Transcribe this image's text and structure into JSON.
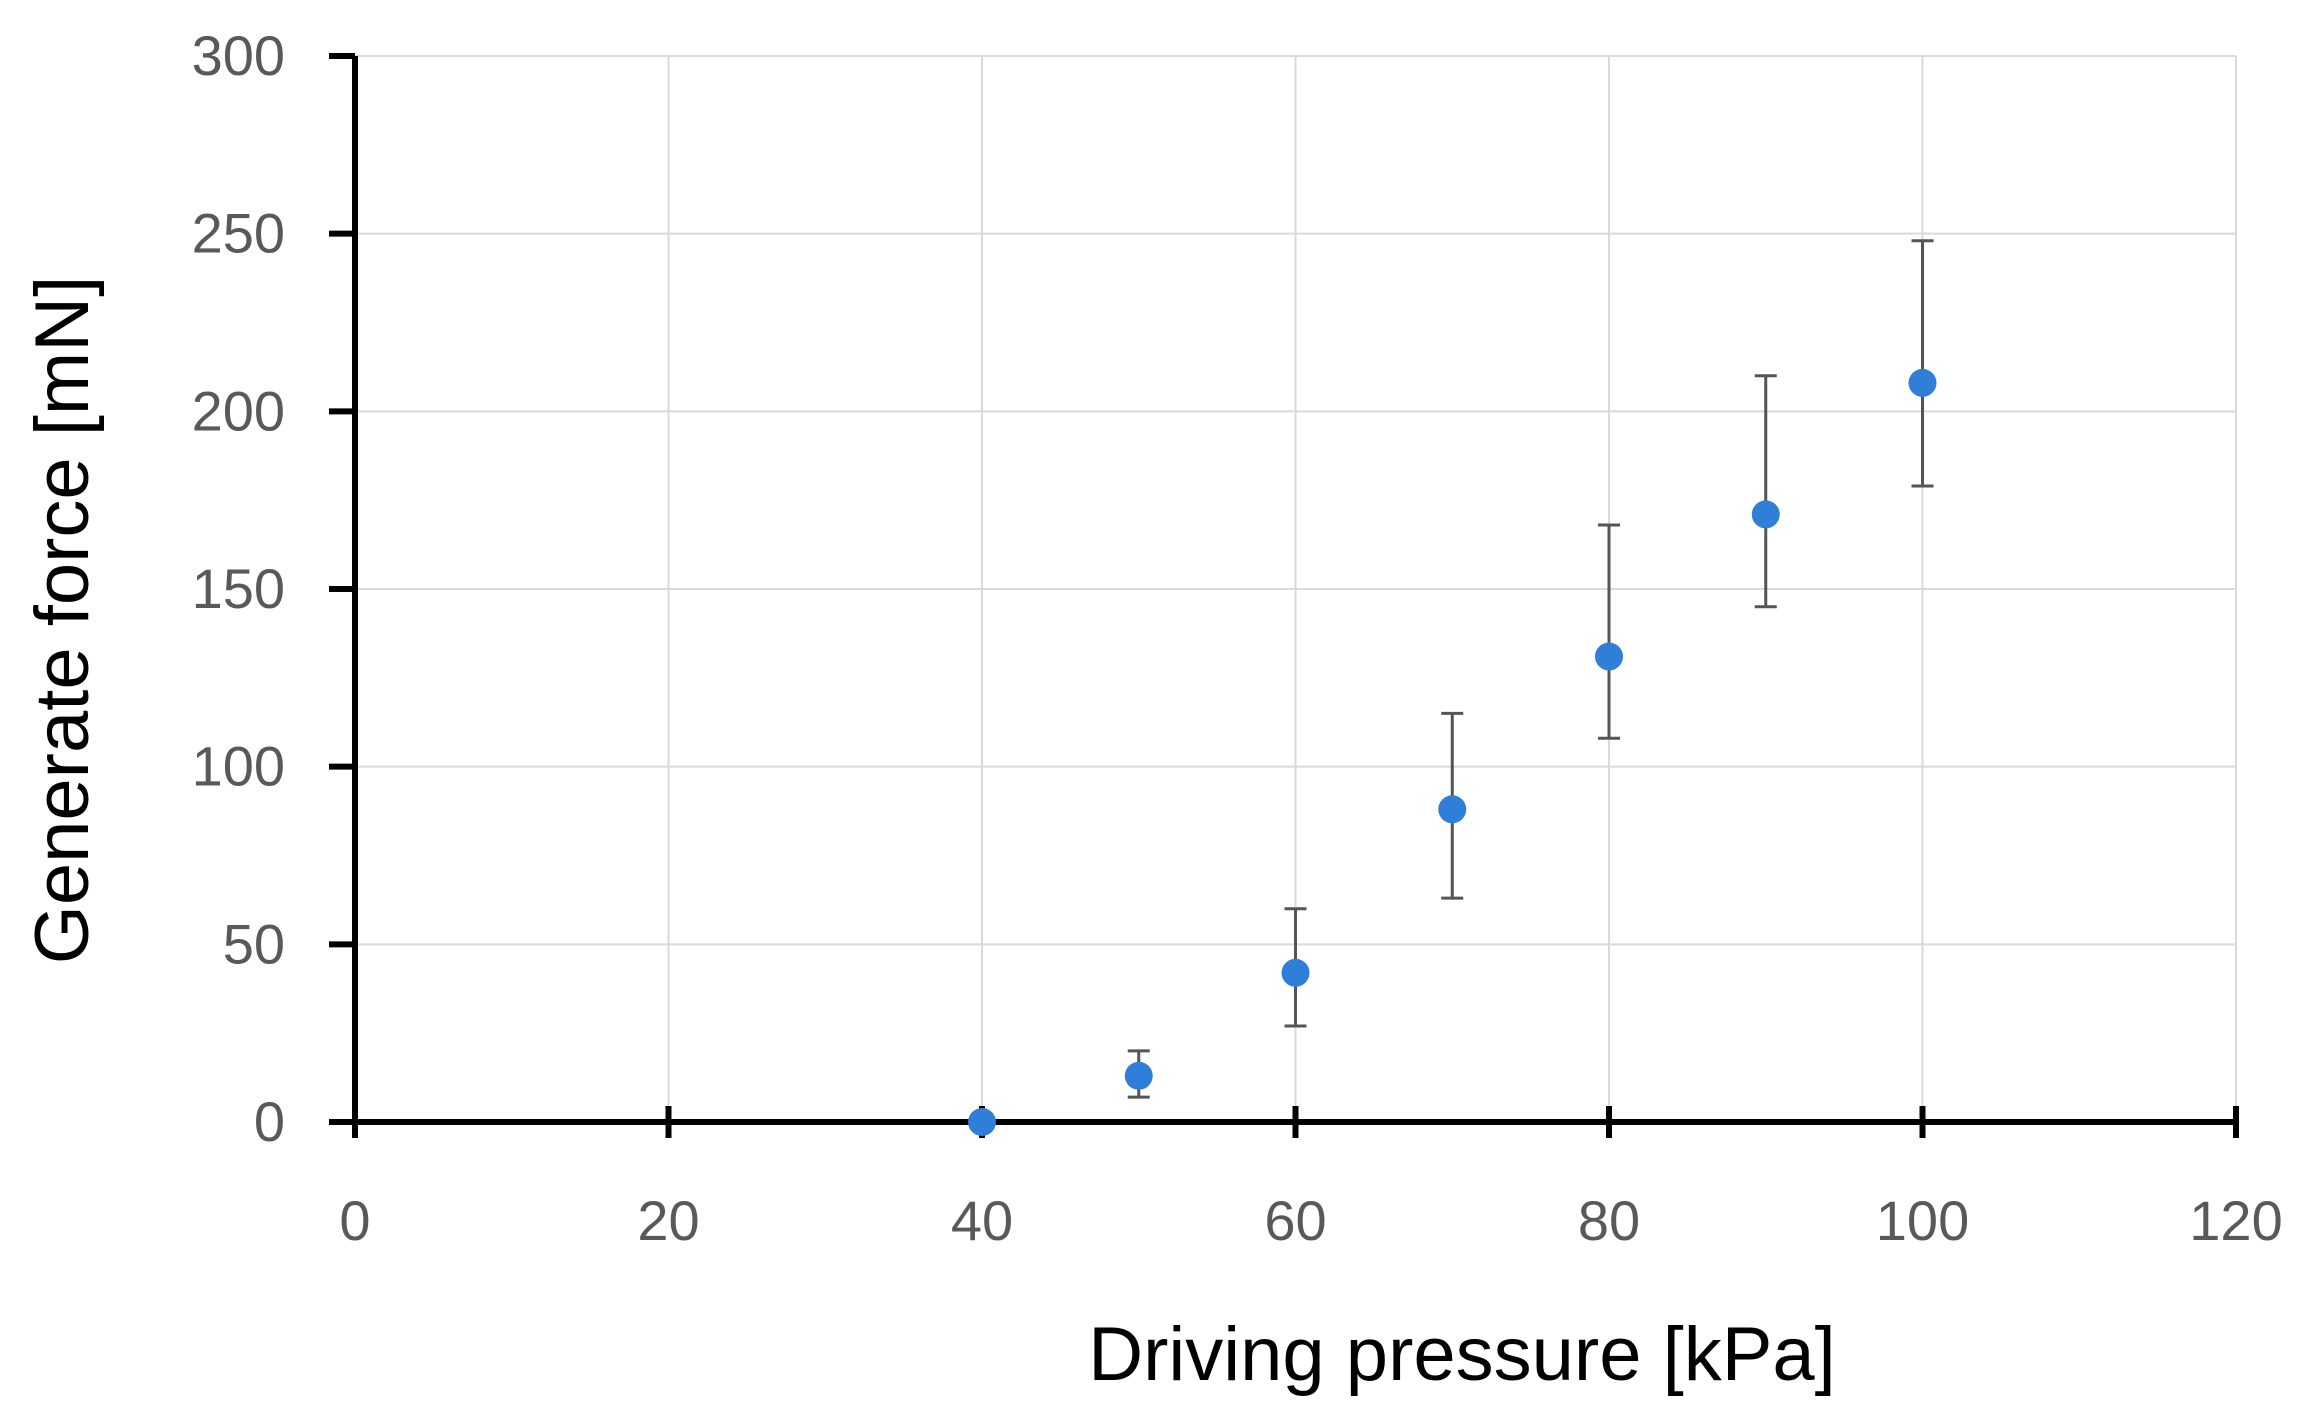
{
  "chart_data": {
    "type": "scatter",
    "title": "",
    "xlabel": "Driving pressure [kPa]",
    "ylabel": "Generate force [mN]",
    "xlim": [
      0,
      120
    ],
    "ylim": [
      0,
      300
    ],
    "x_ticks": [
      0,
      20,
      40,
      60,
      80,
      100,
      120
    ],
    "y_ticks": [
      0,
      50,
      100,
      150,
      200,
      250,
      300
    ],
    "grid": true,
    "legend": "none",
    "series": [
      {
        "name": "Generate force",
        "color": "#2f7ed8",
        "points": [
          {
            "x": 40,
            "y": 0
          },
          {
            "x": 50,
            "y": 13,
            "err_low": 7,
            "err_high": 20
          },
          {
            "x": 60,
            "y": 42,
            "err_low": 27,
            "err_high": 60
          },
          {
            "x": 70,
            "y": 88,
            "err_low": 63,
            "err_high": 115
          },
          {
            "x": 80,
            "y": 131,
            "err_low": 108,
            "err_high": 168
          },
          {
            "x": 90,
            "y": 171,
            "err_low": 145,
            "err_high": 210
          },
          {
            "x": 100,
            "y": 208,
            "err_low": 179,
            "err_high": 248
          }
        ]
      }
    ],
    "colors": {
      "point": "#2f7ed8",
      "errorbar": "#555555",
      "grid": "#d9d9d9",
      "axis": "#000000",
      "tick_label": "#595959"
    }
  }
}
